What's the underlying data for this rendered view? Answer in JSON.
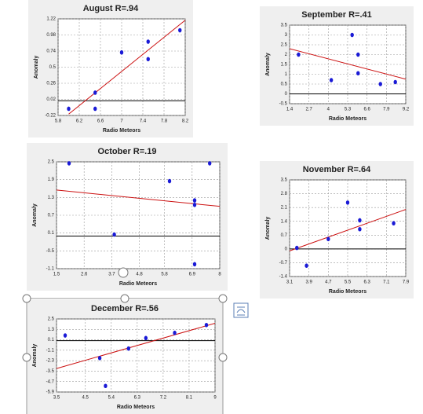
{
  "chart_data": [
    {
      "type": "scatter",
      "title": "August R=.94",
      "x_label": "Radio Meteors",
      "y_label": "Anomaly",
      "color": "#1a1ad6",
      "trend_color": "#cc1111",
      "x": [
        6.0,
        6.5,
        6.5,
        7.0,
        7.5,
        7.5,
        8.1
      ],
      "values": [
        -0.12,
        -0.12,
        0.12,
        0.72,
        0.88,
        0.62,
        1.05
      ],
      "xlim": [
        5.8,
        8.2
      ],
      "xticks": [
        5.8,
        6.2,
        6.6,
        7.0,
        7.4,
        7.8,
        8.2
      ],
      "ylim": [
        -0.22,
        1.22
      ],
      "yticks": [
        -0.22,
        0.02,
        0.26,
        0.5,
        0.74,
        0.98,
        1.22
      ],
      "baseline": 0,
      "trendline": {
        "x": [
          6.0,
          8.2
        ],
        "y": [
          -0.2,
          1.2
        ]
      },
      "grid": true
    },
    {
      "type": "scatter",
      "title": "September R=.41",
      "x_label": "Radio Meteors",
      "y_label": "Anomaly",
      "color": "#1a1ad6",
      "trend_color": "#cc1111",
      "x": [
        2.0,
        4.2,
        5.6,
        6.0,
        6.0,
        7.5,
        8.5
      ],
      "values": [
        2.0,
        0.7,
        3.0,
        2.0,
        1.05,
        0.5,
        0.6
      ],
      "xlim": [
        1.4,
        9.2
      ],
      "xticks": [
        1.4,
        2.7,
        4.0,
        5.3,
        6.6,
        7.9,
        9.2
      ],
      "ylim": [
        -0.5,
        3.5
      ],
      "yticks": [
        -0.5,
        0,
        0.5,
        1,
        1.5,
        2,
        2.5,
        3,
        3.5
      ],
      "baseline": 0,
      "trendline": {
        "x": [
          1.4,
          9.2
        ],
        "y": [
          2.3,
          0.75
        ]
      },
      "grid": true
    },
    {
      "type": "scatter",
      "title": "October R=.19",
      "x_label": "Radio Meteors",
      "y_label": "Anomaly",
      "color": "#1a1ad6",
      "trend_color": "#cc1111",
      "x": [
        2.0,
        3.8,
        6.0,
        7.0,
        7.0,
        7.0,
        7.6
      ],
      "values": [
        2.45,
        0.05,
        1.85,
        1.2,
        1.05,
        -0.95,
        2.45
      ],
      "xlim": [
        1.5,
        8.0
      ],
      "xticks": [
        1.5,
        2.6,
        3.7,
        4.8,
        5.8,
        6.9,
        8.0
      ],
      "ylim": [
        -1.1,
        2.5
      ],
      "yticks": [
        -1.1,
        -0.5,
        0.1,
        0.7,
        1.3,
        1.9,
        2.5
      ],
      "baseline": 0,
      "trendline": {
        "x": [
          1.5,
          8.0
        ],
        "y": [
          1.55,
          1.0
        ]
      },
      "grid": true
    },
    {
      "type": "scatter",
      "title": "November R=.64",
      "x_label": "Radio Meteors",
      "y_label": "Anomaly",
      "color": "#1a1ad6",
      "trend_color": "#cc1111",
      "x": [
        3.4,
        3.8,
        4.7,
        5.5,
        6.0,
        6.0,
        7.4
      ],
      "values": [
        0.05,
        -0.85,
        0.5,
        2.35,
        1.45,
        1.0,
        1.3
      ],
      "xlim": [
        3.1,
        7.9
      ],
      "xticks": [
        3.1,
        3.9,
        4.7,
        5.5,
        6.3,
        7.1,
        7.9
      ],
      "ylim": [
        -1.4,
        3.5
      ],
      "yticks": [
        -1.4,
        -0.7,
        0,
        0.7,
        1.4,
        2.1,
        2.8,
        3.5
      ],
      "baseline": 0,
      "trendline": {
        "x": [
          3.1,
          7.9
        ],
        "y": [
          -0.1,
          2.0
        ]
      },
      "grid": true
    },
    {
      "type": "scatter",
      "title": "December R=.56",
      "x_label": "Radio Meteors",
      "y_label": "Anomaly",
      "color": "#1a1ad6",
      "trend_color": "#cc1111",
      "x": [
        3.8,
        5.0,
        5.2,
        6.0,
        6.6,
        7.6,
        8.7
      ],
      "values": [
        0.6,
        -2.0,
        -5.2,
        -0.9,
        0.3,
        0.9,
        1.8
      ],
      "xlim": [
        3.5,
        9.0
      ],
      "xticks": [
        3.5,
        4.5,
        5.4,
        6.3,
        7.2,
        8.1,
        9.0
      ],
      "ylim": [
        -5.9,
        2.5
      ],
      "yticks": [
        -5.9,
        -4.7,
        -3.5,
        -2.3,
        -1.1,
        0.1,
        1.3,
        2.5
      ],
      "baseline": 0,
      "trendline": {
        "x": [
          3.5,
          9.0
        ],
        "y": [
          -3.2,
          2.0
        ]
      },
      "grid": true
    }
  ]
}
